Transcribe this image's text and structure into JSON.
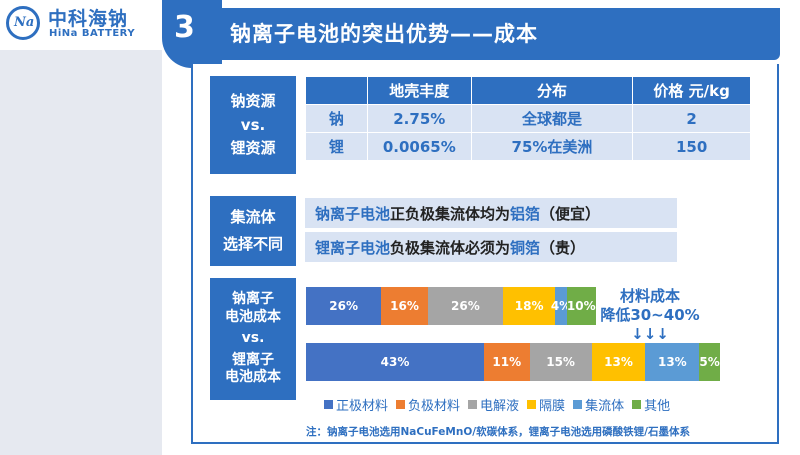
{
  "logo": {
    "badge": "Na",
    "cn": "中科海钠",
    "en": "HiNa BATTERY"
  },
  "title": {
    "number": "3",
    "text": "钠离子电池的突出优势——成本"
  },
  "resource": {
    "label": [
      "钠资源",
      "vs.",
      "锂资源"
    ],
    "headers": [
      "",
      "地壳丰度",
      "分布",
      "价格 元/kg"
    ],
    "rows": [
      [
        "钠",
        "2.75%",
        "全球都是",
        "2"
      ],
      [
        "锂",
        "0.0065%",
        "75%在美洲",
        "150"
      ]
    ]
  },
  "collector": {
    "label": [
      "集流体",
      "选择不同"
    ],
    "line1": {
      "subject": "钠离子电池",
      "mid": "正负极集流体均为",
      "material": "铝箔",
      "tail": "（便宜）"
    },
    "line2": {
      "subject": "锂离子电池",
      "mid": "负极集流体必须为",
      "material": "铜箔",
      "tail": "（贵）"
    }
  },
  "cost": {
    "label": [
      "钠离子",
      "电池成本",
      "vs.",
      "锂离子",
      "电池成本"
    ],
    "note_line1": "材料成本",
    "note_line2": "降低30~40% ↓↓↓"
  },
  "chart_data": {
    "type": "bar",
    "orientation": "horizontal-stacked",
    "categories": [
      "钠离子电池成本",
      "锂离子电池成本"
    ],
    "series": [
      {
        "name": "正极材料",
        "color": "#4472c4",
        "values": [
          26,
          43
        ],
        "labels": [
          "26%",
          "43%"
        ]
      },
      {
        "name": "负极材料",
        "color": "#ed7d31",
        "values": [
          16,
          11
        ],
        "labels": [
          "16%",
          "11%"
        ]
      },
      {
        "name": "电解液",
        "color": "#a5a5a5",
        "values": [
          26,
          15
        ],
        "labels": [
          "26%",
          "15%"
        ]
      },
      {
        "name": "隔膜",
        "color": "#ffc000",
        "values": [
          18,
          13
        ],
        "labels": [
          "18%",
          "13%"
        ]
      },
      {
        "name": "集流体",
        "color": "#5b9bd5",
        "values": [
          4,
          13
        ],
        "labels": [
          "4%",
          "13%"
        ]
      },
      {
        "name": "其他",
        "color": "#70ad47",
        "values": [
          10,
          5
        ],
        "labels": [
          "10%",
          "5%"
        ]
      }
    ],
    "bar_totals_relative": [
      0.7,
      1.0
    ],
    "legend_position": "bottom"
  },
  "footnote": "注：钠离子电池选用NaCuFeMnO/软碳体系，锂离子电池选用磷酸铁锂/石墨体系"
}
